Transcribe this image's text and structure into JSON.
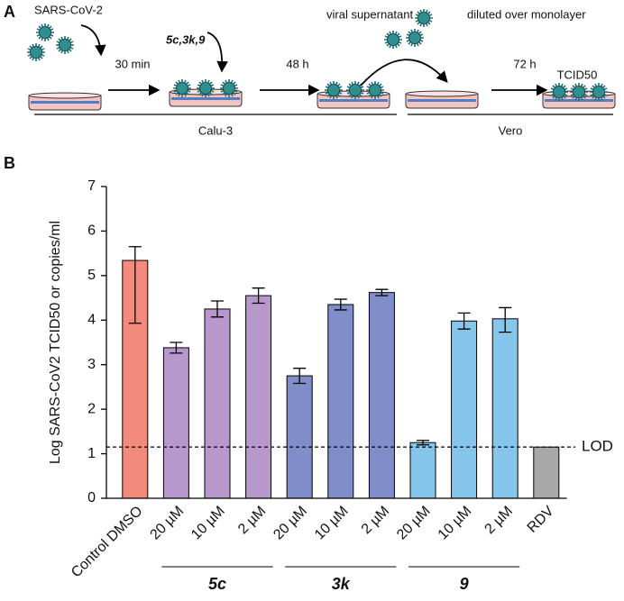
{
  "diagram": {
    "panel_label": "A",
    "virus_label": "SARS-CoV-2",
    "step1": "30 min",
    "compounds": "5c,3k,9",
    "step2": "48 h",
    "transfer": "viral supernatant",
    "dilution": "diluted over monolayer",
    "step3": "72 h",
    "readout": "TCID50",
    "cell_line_1": "Calu-3",
    "cell_line_2": "Vero"
  },
  "chart_data": {
    "type": "bar",
    "panel_label": "B",
    "y_label": "Log SARS-CoV2 TCID50 or copies/ml",
    "categories": [
      "Control DMSO",
      "20 µM",
      "10 µM",
      "2 µM",
      "20 µM",
      "10 µM",
      "2 µM",
      "20 µM",
      "10 µM",
      "2 µM",
      "RDV"
    ],
    "values": [
      5.34,
      3.38,
      4.25,
      4.55,
      2.75,
      4.35,
      4.62,
      1.25,
      3.98,
      4.03,
      1.15
    ],
    "error_minus": [
      1.41,
      0.12,
      0.18,
      0.17,
      0.17,
      0.12,
      0.07,
      0.05,
      0.18,
      0.3,
      0
    ],
    "error_plus": [
      0.31,
      0.12,
      0.18,
      0.17,
      0.17,
      0.12,
      0.07,
      0.05,
      0.18,
      0.25,
      0
    ],
    "colors": [
      "#f28b7c",
      "#b898cc",
      "#b898cc",
      "#b898cc",
      "#7f8dc9",
      "#7f8dc9",
      "#7f8dc9",
      "#87c6ec",
      "#87c6ec",
      "#87c6ec",
      "#a8a8a8"
    ],
    "groups": [
      {
        "label": "5c",
        "first": 1,
        "last": 3
      },
      {
        "label": "3k",
        "first": 4,
        "last": 6
      },
      {
        "label": "9",
        "first": 7,
        "last": 9
      }
    ],
    "reference_line": {
      "label": "LOD",
      "value": 1.15
    },
    "ylim": [
      0,
      7
    ],
    "yticks": [
      0,
      1,
      2,
      3,
      4,
      5,
      6,
      7
    ]
  }
}
